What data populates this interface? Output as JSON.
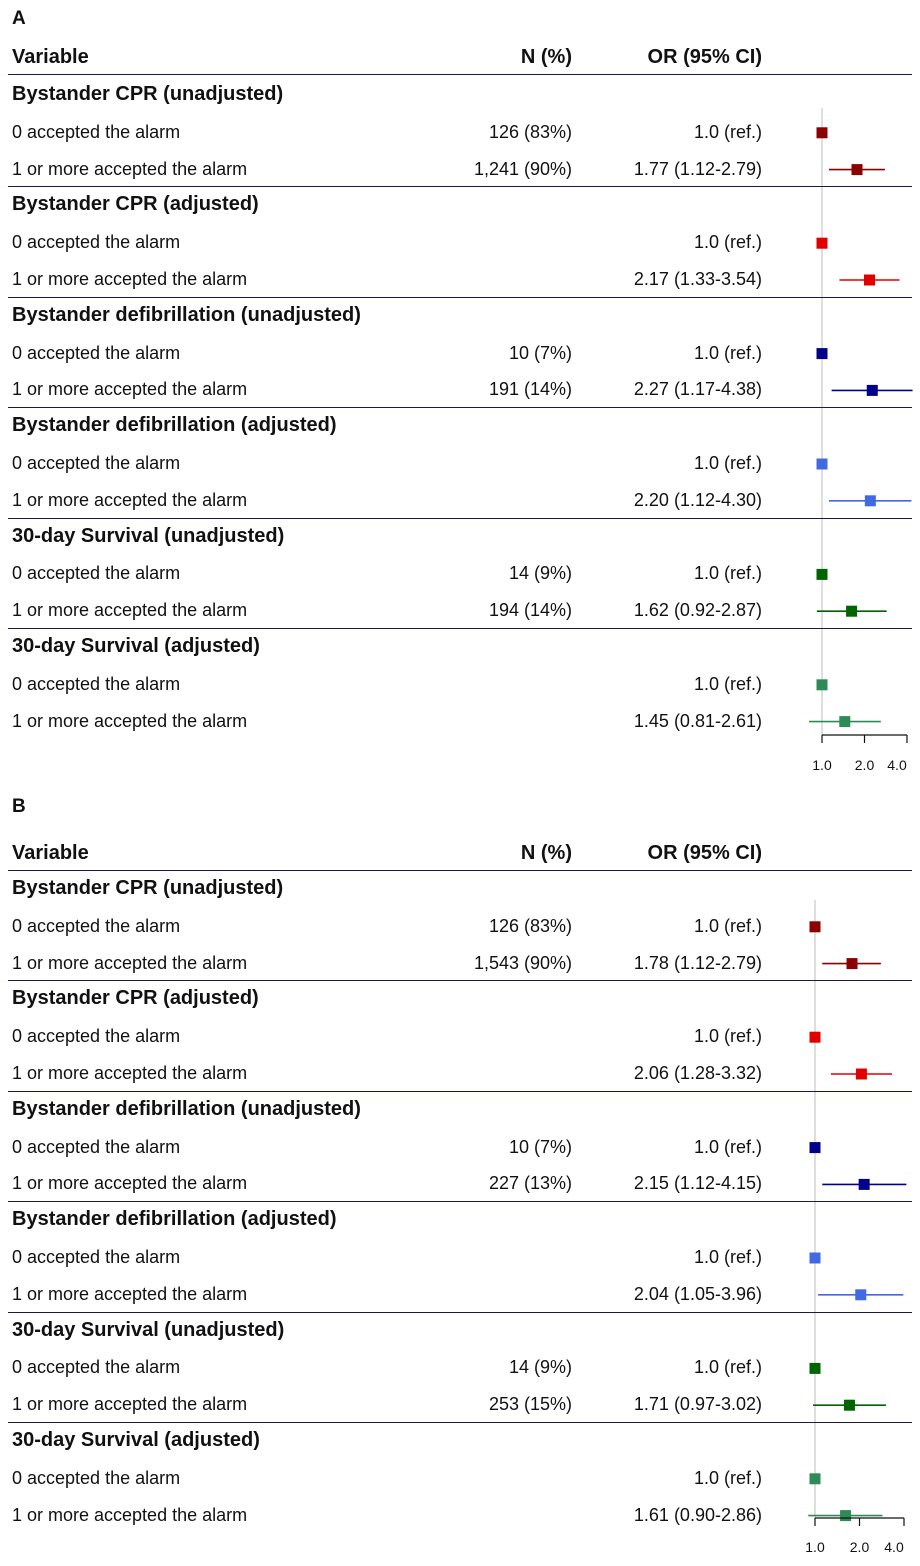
{
  "header": {
    "variable": "Variable",
    "n": "N (%)",
    "or": "OR (95% CI)"
  },
  "axis_ticks": [
    "1.0",
    "2.0",
    "4.0"
  ],
  "chart_data": [
    {
      "panel": "A",
      "type": "forest",
      "scale": "log",
      "xlim": [
        1.0,
        4.0
      ],
      "groups": [
        {
          "title": "Bystander CPR (unadjusted)",
          "color": "#8B0000",
          "rows": [
            {
              "label": "0 accepted the alarm",
              "n": "126 (83%)",
              "or_text": "1.0 (ref.)",
              "or": 1.0,
              "lo": null,
              "hi": null
            },
            {
              "label": "1 or more accepted the alarm",
              "n": "1,241 (90%)",
              "or_text": "1.77 (1.12-2.79)",
              "or": 1.77,
              "lo": 1.12,
              "hi": 2.79
            }
          ]
        },
        {
          "title": "Bystander CPR (adjusted)",
          "color": "#E00000",
          "rows": [
            {
              "label": "0 accepted the alarm",
              "n": "",
              "or_text": "1.0 (ref.)",
              "or": 1.0,
              "lo": null,
              "hi": null
            },
            {
              "label": "1 or more accepted the alarm",
              "n": "",
              "or_text": "2.17 (1.33-3.54)",
              "or": 2.17,
              "lo": 1.33,
              "hi": 3.54
            }
          ]
        },
        {
          "title": "Bystander defibrillation (unadjusted)",
          "color": "#00008B",
          "rows": [
            {
              "label": "0 accepted the alarm",
              "n": "10 (7%)",
              "or_text": "1.0 (ref.)",
              "or": 1.0,
              "lo": null,
              "hi": null
            },
            {
              "label": "1 or more accepted the alarm",
              "n": "191 (14%)",
              "or_text": "2.27 (1.17-4.38)",
              "or": 2.27,
              "lo": 1.17,
              "hi": 4.38
            }
          ]
        },
        {
          "title": "Bystander defibrillation (adjusted)",
          "color": "#4169E1",
          "rows": [
            {
              "label": "0 accepted the alarm",
              "n": "",
              "or_text": "1.0 (ref.)",
              "or": 1.0,
              "lo": null,
              "hi": null
            },
            {
              "label": "1 or more accepted the alarm",
              "n": "",
              "or_text": "2.20 (1.12-4.30)",
              "or": 2.2,
              "lo": 1.12,
              "hi": 4.3
            }
          ]
        },
        {
          "title": "30-day Survival (unadjusted)",
          "color": "#006400",
          "rows": [
            {
              "label": "0 accepted the alarm",
              "n": "14 (9%)",
              "or_text": "1.0 (ref.)",
              "or": 1.0,
              "lo": null,
              "hi": null
            },
            {
              "label": "1 or more accepted the alarm",
              "n": "194 (14%)",
              "or_text": "1.62 (0.92-2.87)",
              "or": 1.62,
              "lo": 0.92,
              "hi": 2.87
            }
          ]
        },
        {
          "title": "30-day Survival (adjusted)",
          "color": "#2E8B57",
          "rows": [
            {
              "label": "0 accepted the alarm",
              "n": "",
              "or_text": "1.0 (ref.)",
              "or": 1.0,
              "lo": null,
              "hi": null
            },
            {
              "label": "1 or more accepted the alarm",
              "n": "",
              "or_text": "1.45 (0.81-2.61)",
              "or": 1.45,
              "lo": 0.81,
              "hi": 2.61
            }
          ]
        }
      ]
    },
    {
      "panel": "B",
      "type": "forest",
      "scale": "log",
      "xlim": [
        1.0,
        4.0
      ],
      "groups": [
        {
          "title": "Bystander CPR (unadjusted)",
          "color": "#8B0000",
          "rows": [
            {
              "label": "0 accepted the alarm",
              "n": "126 (83%)",
              "or_text": "1.0 (ref.)",
              "or": 1.0,
              "lo": null,
              "hi": null
            },
            {
              "label": "1 or more accepted the alarm",
              "n": "1,543 (90%)",
              "or_text": "1.78 (1.12-2.79)",
              "or": 1.78,
              "lo": 1.12,
              "hi": 2.79
            }
          ]
        },
        {
          "title": "Bystander CPR (adjusted)",
          "color": "#E00000",
          "rows": [
            {
              "label": "0 accepted the alarm",
              "n": "",
              "or_text": "1.0 (ref.)",
              "or": 1.0,
              "lo": null,
              "hi": null
            },
            {
              "label": "1 or more accepted the alarm",
              "n": "",
              "or_text": "2.06 (1.28-3.32)",
              "or": 2.06,
              "lo": 1.28,
              "hi": 3.32
            }
          ]
        },
        {
          "title": "Bystander defibrillation (unadjusted)",
          "color": "#00008B",
          "rows": [
            {
              "label": "0 accepted the alarm",
              "n": "10 (7%)",
              "or_text": "1.0 (ref.)",
              "or": 1.0,
              "lo": null,
              "hi": null
            },
            {
              "label": "1 or more accepted the alarm",
              "n": "227 (13%)",
              "or_text": "2.15 (1.12-4.15)",
              "or": 2.15,
              "lo": 1.12,
              "hi": 4.15
            }
          ]
        },
        {
          "title": "Bystander defibrillation (adjusted)",
          "color": "#4169E1",
          "rows": [
            {
              "label": "0 accepted the alarm",
              "n": "",
              "or_text": "1.0 (ref.)",
              "or": 1.0,
              "lo": null,
              "hi": null
            },
            {
              "label": "1 or more accepted the alarm",
              "n": "",
              "or_text": "2.04 (1.05-3.96)",
              "or": 2.04,
              "lo": 1.05,
              "hi": 3.96
            }
          ]
        },
        {
          "title": "30-day Survival (unadjusted)",
          "color": "#006400",
          "rows": [
            {
              "label": "0 accepted the alarm",
              "n": "14 (9%)",
              "or_text": "1.0 (ref.)",
              "or": 1.0,
              "lo": null,
              "hi": null
            },
            {
              "label": "1 or more accepted the alarm",
              "n": "253 (15%)",
              "or_text": "1.71 (0.97-3.02)",
              "or": 1.71,
              "lo": 0.97,
              "hi": 3.02
            }
          ]
        },
        {
          "title": "30-day Survival (adjusted)",
          "color": "#2E8B57",
          "rows": [
            {
              "label": "0 accepted the alarm",
              "n": "",
              "or_text": "1.0 (ref.)",
              "or": 1.0,
              "lo": null,
              "hi": null
            },
            {
              "label": "1 or more accepted the alarm",
              "n": "",
              "or_text": "1.61 (0.90-2.86)",
              "or": 1.61,
              "lo": 0.9,
              "hi": 2.86
            }
          ]
        }
      ]
    }
  ]
}
